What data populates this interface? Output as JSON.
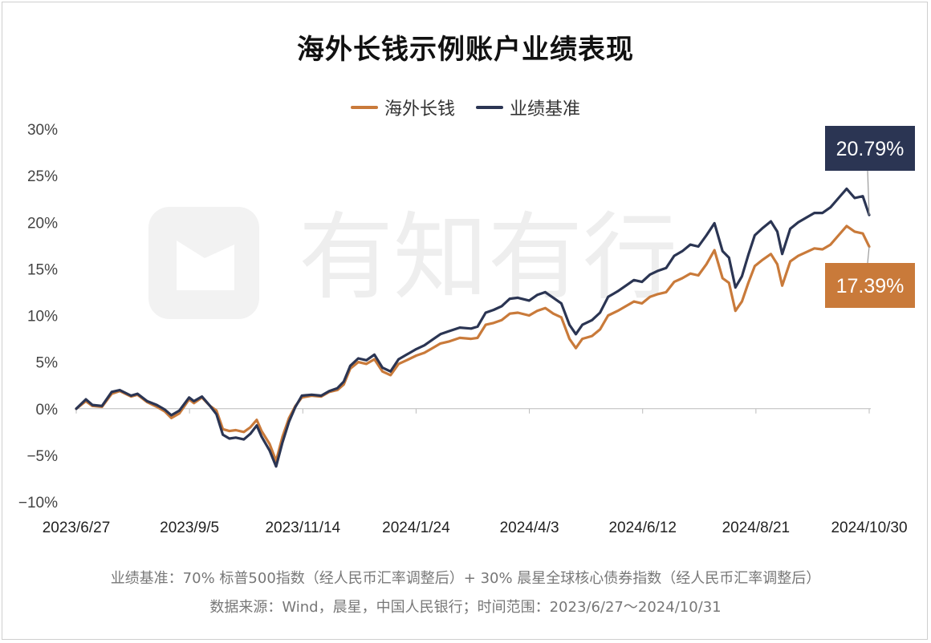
{
  "chart_data": {
    "type": "line",
    "title": "海外长钱示例账户业绩表现",
    "ylim": [
      -10,
      30
    ],
    "y_ticks": [
      "30%",
      "25%",
      "20%",
      "15%",
      "10%",
      "5%",
      "0%",
      "−5%",
      "−10%"
    ],
    "x_ticks": [
      "2023/6/27",
      "2023/9/5",
      "2023/11/14",
      "2024/1/24",
      "2024/4/3",
      "2024/6/12",
      "2024/8/21",
      "2024/10/30"
    ],
    "grid": false,
    "legend_position": "top-center",
    "series": [
      {
        "name": "海外长钱",
        "color": "#c97a3a",
        "end_label": "17.39%",
        "points": [
          [
            "2023-06-27",
            0.0
          ],
          [
            "2023-07-03",
            0.8
          ],
          [
            "2023-07-07",
            0.3
          ],
          [
            "2023-07-13",
            0.2
          ],
          [
            "2023-07-19",
            1.6
          ],
          [
            "2023-07-24",
            1.9
          ],
          [
            "2023-07-31",
            1.3
          ],
          [
            "2023-08-04",
            1.5
          ],
          [
            "2023-08-10",
            0.7
          ],
          [
            "2023-08-16",
            0.2
          ],
          [
            "2023-08-21",
            -0.3
          ],
          [
            "2023-08-25",
            -1.0
          ],
          [
            "2023-08-30",
            -0.5
          ],
          [
            "2023-09-05",
            1.0
          ],
          [
            "2023-09-08",
            0.6
          ],
          [
            "2023-09-13",
            1.2
          ],
          [
            "2023-09-18",
            0.3
          ],
          [
            "2023-09-22",
            -0.2
          ],
          [
            "2023-09-26",
            -2.2
          ],
          [
            "2023-09-30",
            -2.4
          ],
          [
            "2023-10-04",
            -2.3
          ],
          [
            "2023-10-09",
            -2.5
          ],
          [
            "2023-10-13",
            -2.0
          ],
          [
            "2023-10-17",
            -1.2
          ],
          [
            "2023-10-20",
            -2.4
          ],
          [
            "2023-10-25",
            -3.8
          ],
          [
            "2023-10-29",
            -5.6
          ],
          [
            "2023-11-02",
            -3.0
          ],
          [
            "2023-11-06",
            -1.0
          ],
          [
            "2023-11-10",
            0.3
          ],
          [
            "2023-11-14",
            1.2
          ],
          [
            "2023-11-20",
            1.4
          ],
          [
            "2023-11-26",
            1.3
          ],
          [
            "2023-12-01",
            1.8
          ],
          [
            "2023-12-06",
            2.0
          ],
          [
            "2023-12-10",
            2.6
          ],
          [
            "2023-12-14",
            4.3
          ],
          [
            "2023-12-19",
            5.0
          ],
          [
            "2023-12-24",
            4.8
          ],
          [
            "2023-12-29",
            5.3
          ],
          [
            "2024-01-03",
            4.0
          ],
          [
            "2024-01-08",
            3.6
          ],
          [
            "2024-01-13",
            4.8
          ],
          [
            "2024-01-18",
            5.2
          ],
          [
            "2024-01-24",
            5.7
          ],
          [
            "2024-01-29",
            6.0
          ],
          [
            "2024-02-03",
            6.5
          ],
          [
            "2024-02-08",
            7.0
          ],
          [
            "2024-02-13",
            7.2
          ],
          [
            "2024-02-20",
            7.6
          ],
          [
            "2024-02-27",
            7.5
          ],
          [
            "2024-03-02",
            7.6
          ],
          [
            "2024-03-07",
            9.0
          ],
          [
            "2024-03-12",
            9.2
          ],
          [
            "2024-03-17",
            9.5
          ],
          [
            "2024-03-22",
            10.2
          ],
          [
            "2024-03-27",
            10.3
          ],
          [
            "2024-04-03",
            10.0
          ],
          [
            "2024-04-08",
            10.5
          ],
          [
            "2024-04-13",
            10.8
          ],
          [
            "2024-04-18",
            10.2
          ],
          [
            "2024-04-23",
            9.8
          ],
          [
            "2024-04-28",
            7.5
          ],
          [
            "2024-05-02",
            6.5
          ],
          [
            "2024-05-06",
            7.5
          ],
          [
            "2024-05-12",
            7.8
          ],
          [
            "2024-05-17",
            8.5
          ],
          [
            "2024-05-22",
            10.0
          ],
          [
            "2024-05-28",
            10.5
          ],
          [
            "2024-06-02",
            11.0
          ],
          [
            "2024-06-07",
            11.5
          ],
          [
            "2024-06-12",
            11.3
          ],
          [
            "2024-06-17",
            12.0
          ],
          [
            "2024-06-22",
            12.3
          ],
          [
            "2024-06-27",
            12.5
          ],
          [
            "2024-07-02",
            13.6
          ],
          [
            "2024-07-07",
            14.0
          ],
          [
            "2024-07-12",
            14.5
          ],
          [
            "2024-07-17",
            14.3
          ],
          [
            "2024-07-22",
            15.5
          ],
          [
            "2024-07-27",
            17.0
          ],
          [
            "2024-08-01",
            14.0
          ],
          [
            "2024-08-05",
            13.5
          ],
          [
            "2024-08-09",
            10.5
          ],
          [
            "2024-08-13",
            11.5
          ],
          [
            "2024-08-17",
            13.5
          ],
          [
            "2024-08-21",
            15.3
          ],
          [
            "2024-08-26",
            16.0
          ],
          [
            "2024-08-31",
            16.6
          ],
          [
            "2024-09-04",
            15.5
          ],
          [
            "2024-09-07",
            13.2
          ],
          [
            "2024-09-12",
            15.8
          ],
          [
            "2024-09-17",
            16.4
          ],
          [
            "2024-09-22",
            16.8
          ],
          [
            "2024-09-27",
            17.2
          ],
          [
            "2024-10-02",
            17.1
          ],
          [
            "2024-10-07",
            17.6
          ],
          [
            "2024-10-12",
            18.6
          ],
          [
            "2024-10-17",
            19.6
          ],
          [
            "2024-10-22",
            19.0
          ],
          [
            "2024-10-27",
            18.8
          ],
          [
            "2024-10-31",
            17.39
          ]
        ]
      },
      {
        "name": "业绩基准",
        "color": "#2b3553",
        "end_label": "20.79%",
        "points": [
          [
            "2023-06-27",
            0.0
          ],
          [
            "2023-07-03",
            1.0
          ],
          [
            "2023-07-07",
            0.4
          ],
          [
            "2023-07-13",
            0.3
          ],
          [
            "2023-07-19",
            1.8
          ],
          [
            "2023-07-24",
            2.0
          ],
          [
            "2023-07-31",
            1.4
          ],
          [
            "2023-08-04",
            1.6
          ],
          [
            "2023-08-10",
            0.8
          ],
          [
            "2023-08-16",
            0.4
          ],
          [
            "2023-08-21",
            -0.1
          ],
          [
            "2023-08-25",
            -0.7
          ],
          [
            "2023-08-30",
            -0.2
          ],
          [
            "2023-09-05",
            1.2
          ],
          [
            "2023-09-08",
            0.8
          ],
          [
            "2023-09-13",
            1.3
          ],
          [
            "2023-09-18",
            0.3
          ],
          [
            "2023-09-22",
            -0.6
          ],
          [
            "2023-09-26",
            -2.8
          ],
          [
            "2023-09-30",
            -3.2
          ],
          [
            "2023-10-04",
            -3.1
          ],
          [
            "2023-10-09",
            -3.3
          ],
          [
            "2023-10-13",
            -2.7
          ],
          [
            "2023-10-17",
            -1.8
          ],
          [
            "2023-10-20",
            -3.0
          ],
          [
            "2023-10-25",
            -4.5
          ],
          [
            "2023-10-29",
            -6.2
          ],
          [
            "2023-11-02",
            -3.6
          ],
          [
            "2023-11-06",
            -1.4
          ],
          [
            "2023-11-10",
            0.2
          ],
          [
            "2023-11-14",
            1.4
          ],
          [
            "2023-11-20",
            1.5
          ],
          [
            "2023-11-26",
            1.4
          ],
          [
            "2023-12-01",
            1.9
          ],
          [
            "2023-12-06",
            2.2
          ],
          [
            "2023-12-10",
            2.9
          ],
          [
            "2023-12-14",
            4.6
          ],
          [
            "2023-12-19",
            5.4
          ],
          [
            "2023-12-24",
            5.2
          ],
          [
            "2023-12-29",
            5.8
          ],
          [
            "2024-01-03",
            4.4
          ],
          [
            "2024-01-08",
            4.0
          ],
          [
            "2024-01-13",
            5.3
          ],
          [
            "2024-01-18",
            5.8
          ],
          [
            "2024-01-24",
            6.4
          ],
          [
            "2024-01-29",
            6.8
          ],
          [
            "2024-02-03",
            7.4
          ],
          [
            "2024-02-08",
            8.0
          ],
          [
            "2024-02-13",
            8.3
          ],
          [
            "2024-02-20",
            8.7
          ],
          [
            "2024-02-27",
            8.6
          ],
          [
            "2024-03-02",
            8.8
          ],
          [
            "2024-03-07",
            10.3
          ],
          [
            "2024-03-12",
            10.6
          ],
          [
            "2024-03-17",
            11.0
          ],
          [
            "2024-03-22",
            11.8
          ],
          [
            "2024-03-27",
            11.9
          ],
          [
            "2024-04-03",
            11.6
          ],
          [
            "2024-04-08",
            12.2
          ],
          [
            "2024-04-13",
            12.5
          ],
          [
            "2024-04-18",
            11.9
          ],
          [
            "2024-04-23",
            11.3
          ],
          [
            "2024-04-28",
            9.0
          ],
          [
            "2024-05-02",
            8.0
          ],
          [
            "2024-05-06",
            9.0
          ],
          [
            "2024-05-12",
            9.5
          ],
          [
            "2024-05-17",
            10.3
          ],
          [
            "2024-05-22",
            12.0
          ],
          [
            "2024-05-28",
            12.6
          ],
          [
            "2024-06-02",
            13.2
          ],
          [
            "2024-06-07",
            13.8
          ],
          [
            "2024-06-12",
            13.6
          ],
          [
            "2024-06-17",
            14.4
          ],
          [
            "2024-06-22",
            14.8
          ],
          [
            "2024-06-27",
            15.1
          ],
          [
            "2024-07-02",
            16.4
          ],
          [
            "2024-07-07",
            16.9
          ],
          [
            "2024-07-12",
            17.6
          ],
          [
            "2024-07-17",
            17.4
          ],
          [
            "2024-07-22",
            18.6
          ],
          [
            "2024-07-27",
            19.9
          ],
          [
            "2024-08-01",
            16.9
          ],
          [
            "2024-08-05",
            16.2
          ],
          [
            "2024-08-09",
            13.0
          ],
          [
            "2024-08-13",
            14.2
          ],
          [
            "2024-08-17",
            16.5
          ],
          [
            "2024-08-21",
            18.6
          ],
          [
            "2024-08-26",
            19.4
          ],
          [
            "2024-08-31",
            20.1
          ],
          [
            "2024-09-04",
            19.0
          ],
          [
            "2024-09-07",
            16.6
          ],
          [
            "2024-09-12",
            19.3
          ],
          [
            "2024-09-17",
            20.0
          ],
          [
            "2024-09-22",
            20.5
          ],
          [
            "2024-09-27",
            21.0
          ],
          [
            "2024-10-02",
            21.0
          ],
          [
            "2024-10-07",
            21.6
          ],
          [
            "2024-10-12",
            22.6
          ],
          [
            "2024-10-17",
            23.6
          ],
          [
            "2024-10-22",
            22.6
          ],
          [
            "2024-10-27",
            22.8
          ],
          [
            "2024-10-31",
            20.79
          ]
        ]
      }
    ]
  },
  "footnotes": {
    "benchmark_note": "业绩基准：70% 标普500指数（经人民币汇率调整后）+ 30% 晨星全球核心债券指数（经人民币汇率调整后）",
    "source_note": "数据来源：Wind，晨星，中国人民银行；时间范围：2023/6/27～2024/10/31"
  },
  "watermark": {
    "text": "有知有行"
  }
}
